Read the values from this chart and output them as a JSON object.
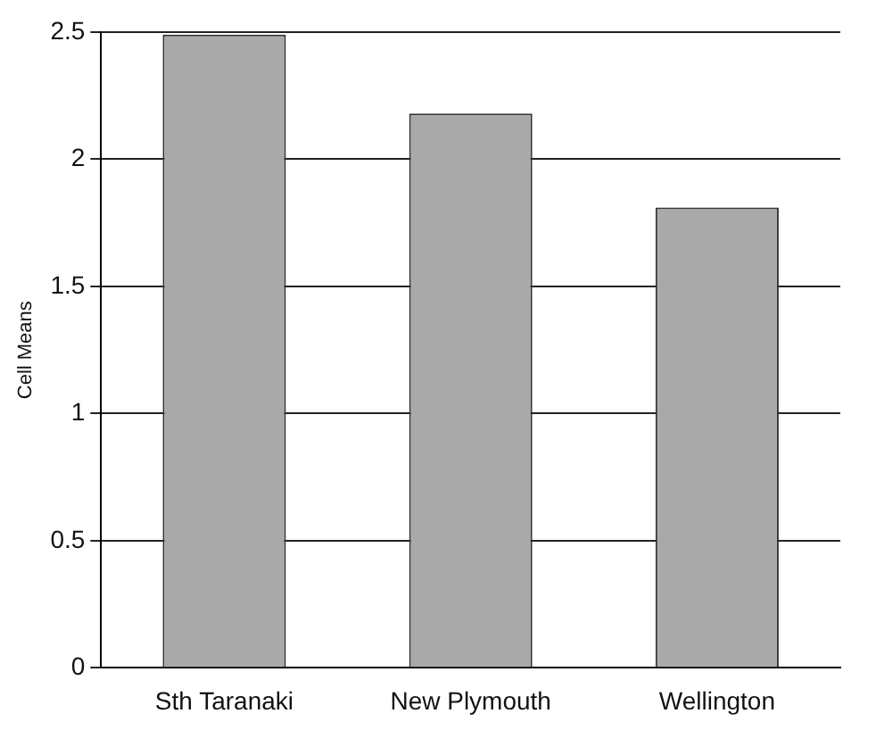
{
  "chart_data": {
    "type": "bar",
    "ylabel": "Cell Means",
    "categories": [
      "Sth Taranaki",
      "New Plymouth",
      "Wellington"
    ],
    "values": [
      2.49,
      2.18,
      1.81
    ],
    "color": "#a9a9a9",
    "ylim": [
      0,
      2.5
    ],
    "yticks": [
      0,
      0.5,
      1,
      1.5,
      2,
      2.5
    ],
    "grid": "y",
    "legend": false
  }
}
